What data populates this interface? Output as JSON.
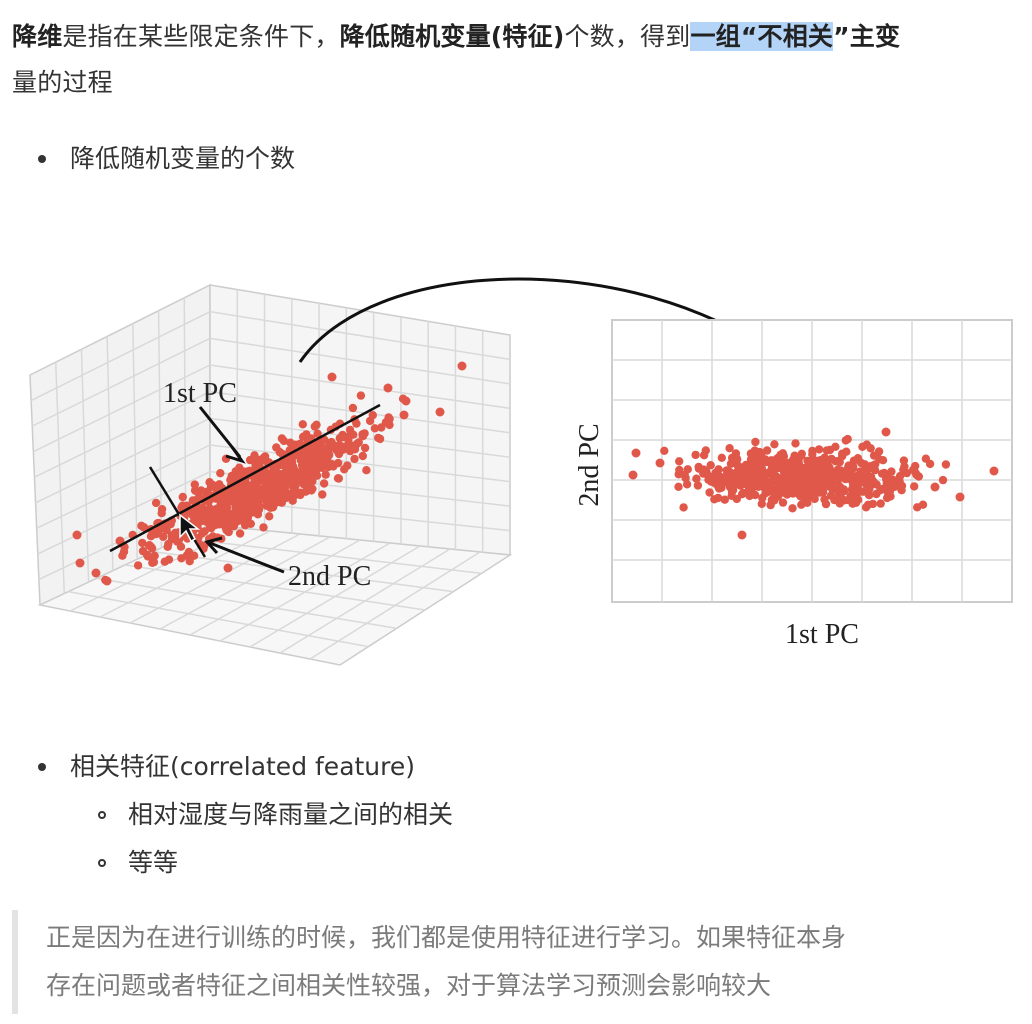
{
  "intro": {
    "part1_bold": "降维",
    "part2": "是指在某些限定条件下，",
    "part3_bold": "降低随机变量(特征)",
    "part4": "个数，得到",
    "part5_highlight": "一组“不相关",
    "part6_bold": "”主变",
    "part7": "量的过程"
  },
  "bullets": {
    "reduce": "降低随机变量的个数",
    "correlated": "相关特征(correlated feature)",
    "sub_humidity": "相对湿度与降雨量之间的相关",
    "sub_etc": "等等"
  },
  "figure": {
    "label_pc1": "1st PC",
    "label_pc2": "2nd PC",
    "axis_x": "1st PC",
    "axis_y": "2nd PC"
  },
  "colors": {
    "point": "#e0584a",
    "grid": "#d9d9d9",
    "highlight": "#b3d4f7"
  },
  "quote": {
    "line1": "正是因为在进行训练的时候，我们都是使用特征进行学习。如果特征本身",
    "line2": "存在问题或者特征之间相关性较强，对于算法学习预测会影响较大"
  }
}
